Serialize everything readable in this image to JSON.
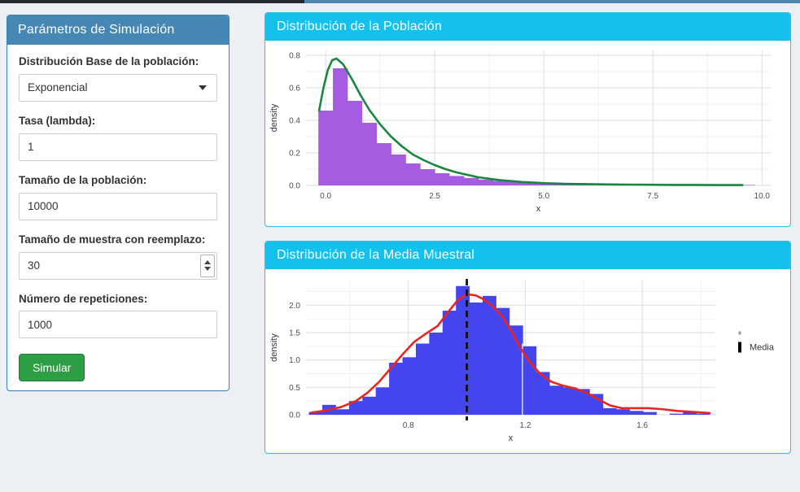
{
  "page": {
    "background": "#ecf0f5",
    "top_strip_left_color": "#23272e",
    "top_strip_right_color": "#4e86b0"
  },
  "sidebar": {
    "title": "Parámetros de Simulación",
    "header_color": "#4587b5",
    "border_color": "#3a85b4",
    "fields": [
      {
        "label": "Distribución Base de la población:",
        "type": "select",
        "value": "Exponencial"
      },
      {
        "label": "Tasa (lambda):",
        "type": "text",
        "value": "1"
      },
      {
        "label": "Tamaño de la población:",
        "type": "text",
        "value": "10000"
      },
      {
        "label": "Tamaño de muestra con reemplazo:",
        "type": "number",
        "value": "30"
      },
      {
        "label": "Número de repeticiones:",
        "type": "text",
        "value": "1000"
      }
    ],
    "button": {
      "label": "Simular",
      "color": "#2e9e44"
    }
  },
  "panels": [
    {
      "title": "Distribución de la Población",
      "header_color": "#14c1ec"
    },
    {
      "title": "Distribución de la Media Muestral",
      "header_color": "#14c1ec"
    }
  ],
  "chart_data": [
    {
      "type": "bar",
      "subtype": "histogram-with-density",
      "title": "Distribución de la Población",
      "xlabel": "x",
      "ylabel": "density",
      "xlim": [
        -0.45,
        10.2
      ],
      "ylim": [
        0,
        0.83
      ],
      "grid": true,
      "xticks": [
        0.0,
        2.5,
        5.0,
        7.5,
        10.0
      ],
      "xtick_labels": [
        "0.0",
        "2.5",
        "5.0",
        "7.5",
        "10.0"
      ],
      "xticks_minor": [
        1.25,
        3.75,
        6.25,
        8.75
      ],
      "yticks": [
        0.0,
        0.2,
        0.4,
        0.6,
        0.8
      ],
      "ytick_labels": [
        "0.0",
        "0.2",
        "0.4",
        "0.6",
        "0.8"
      ],
      "yticks_minor": [
        0.1,
        0.3,
        0.5,
        0.7
      ],
      "colors": {
        "bar": "#a55ce0",
        "line": "#17873f"
      },
      "bins": {
        "start": -0.167,
        "width": 0.3334,
        "heights": [
          0.46,
          0.72,
          0.52,
          0.385,
          0.26,
          0.19,
          0.135,
          0.1,
          0.075,
          0.058,
          0.046,
          0.036,
          0.028,
          0.022,
          0.017,
          0.013,
          0.01,
          0.008,
          0.006,
          0.005,
          0.004,
          0.003,
          0.003,
          0.002,
          0.002,
          0.002,
          0.001,
          0.001,
          0.001,
          0.003
        ]
      },
      "density": {
        "x": [
          -0.15,
          -0.05,
          0.05,
          0.15,
          0.25,
          0.4,
          0.6,
          0.8,
          1.0,
          1.25,
          1.5,
          1.75,
          2.0,
          2.25,
          2.5,
          2.75,
          3.0,
          3.5,
          4.0,
          4.5,
          5.0,
          5.5,
          6.0,
          6.5,
          7.0,
          7.5,
          8.0,
          8.5,
          9.0,
          9.55
        ],
        "y": [
          0.46,
          0.6,
          0.71,
          0.77,
          0.78,
          0.745,
          0.655,
          0.555,
          0.465,
          0.375,
          0.3,
          0.24,
          0.19,
          0.155,
          0.125,
          0.1,
          0.08,
          0.05,
          0.032,
          0.021,
          0.014,
          0.01,
          0.008,
          0.006,
          0.005,
          0.004,
          0.003,
          0.003,
          0.002,
          0.002
        ]
      }
    },
    {
      "type": "bar",
      "subtype": "histogram-with-density",
      "title": "Distribución de la Media Muestral",
      "xlabel": "x",
      "ylabel": "density",
      "xlim": [
        0.45,
        1.85
      ],
      "ylim": [
        0,
        2.45
      ],
      "grid": true,
      "xticks": [
        0.8,
        1.2,
        1.6
      ],
      "xtick_labels": [
        "0.8",
        "1.2",
        "1.6"
      ],
      "xticks_minor": [
        0.6,
        1.0,
        1.4,
        1.8
      ],
      "yticks": [
        0.0,
        0.5,
        1.0,
        1.5,
        2.0
      ],
      "ytick_labels": [
        "0.0",
        "0.5",
        "1.0",
        "1.5",
        "2.0"
      ],
      "yticks_minor": [
        0.25,
        0.75,
        1.25,
        1.75,
        2.25
      ],
      "colors": {
        "bar": "#4545ef",
        "line": "#e8251f"
      },
      "bins": {
        "start": 0.46,
        "width": 0.0457,
        "heights": [
          0.05,
          0.18,
          0.1,
          0.25,
          0.33,
          0.5,
          0.95,
          1.05,
          1.3,
          1.5,
          1.9,
          2.35,
          2.05,
          2.17,
          1.95,
          1.63,
          1.25,
          0.78,
          0.53,
          0.5,
          0.47,
          0.38,
          0.12,
          0.1,
          0.07,
          0.05,
          0.0,
          0.02,
          0.05,
          0.02
        ]
      },
      "density": {
        "x": [
          0.47,
          0.52,
          0.57,
          0.62,
          0.66,
          0.7,
          0.74,
          0.78,
          0.82,
          0.86,
          0.9,
          0.94,
          0.97,
          1.0,
          1.03,
          1.06,
          1.09,
          1.12,
          1.15,
          1.18,
          1.21,
          1.25,
          1.29,
          1.33,
          1.37,
          1.41,
          1.45,
          1.49,
          1.53,
          1.57,
          1.62,
          1.67,
          1.72,
          1.78,
          1.83
        ],
        "y": [
          0.04,
          0.08,
          0.14,
          0.25,
          0.4,
          0.6,
          0.85,
          1.1,
          1.33,
          1.48,
          1.62,
          1.9,
          2.1,
          2.2,
          2.18,
          2.1,
          1.97,
          1.8,
          1.55,
          1.25,
          1.0,
          0.75,
          0.6,
          0.53,
          0.48,
          0.4,
          0.28,
          0.17,
          0.12,
          0.12,
          0.12,
          0.1,
          0.07,
          0.05,
          0.03
        ]
      },
      "vline": {
        "x": 1.0,
        "color": "#111111",
        "style": "dashed",
        "label": "Media"
      },
      "gap_line": {
        "x": 1.19,
        "top": 1.3
      },
      "legend": {
        "label": "Media",
        "position": "right"
      }
    }
  ]
}
